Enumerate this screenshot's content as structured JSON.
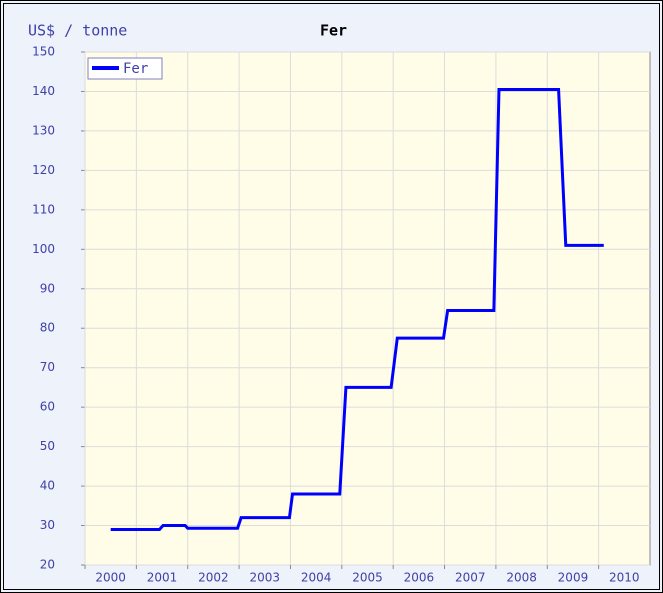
{
  "chart_data": {
    "type": "line",
    "title": "Fer",
    "y_label": "US$ / tonne",
    "x": [
      2000.5,
      2001.45,
      2001.52,
      2001.95,
      2002.0,
      2002.97,
      2003.04,
      2003.98,
      2004.04,
      2004.96,
      2005.08,
      2005.96,
      2006.08,
      2006.98,
      2007.06,
      2007.96,
      2008.06,
      2009.22,
      2009.36,
      2010.1
    ],
    "series": [
      {
        "name": "Fer",
        "color": "#0000ff",
        "values": [
          29,
          29,
          30,
          30,
          29.3,
          29.3,
          32,
          32,
          38,
          38,
          65,
          65,
          77.5,
          77.5,
          84.5,
          84.5,
          140.5,
          140.5,
          101,
          101
        ]
      }
    ],
    "xlim": [
      2000,
      2011
    ],
    "xticks": [
      2000,
      2001,
      2002,
      2003,
      2004,
      2005,
      2006,
      2007,
      2008,
      2009,
      2010
    ],
    "ylim": [
      20,
      150
    ],
    "yticks": [
      20,
      30,
      40,
      50,
      60,
      70,
      80,
      90,
      100,
      110,
      120,
      130,
      140,
      150
    ],
    "grid": true,
    "legend": "upper left"
  }
}
